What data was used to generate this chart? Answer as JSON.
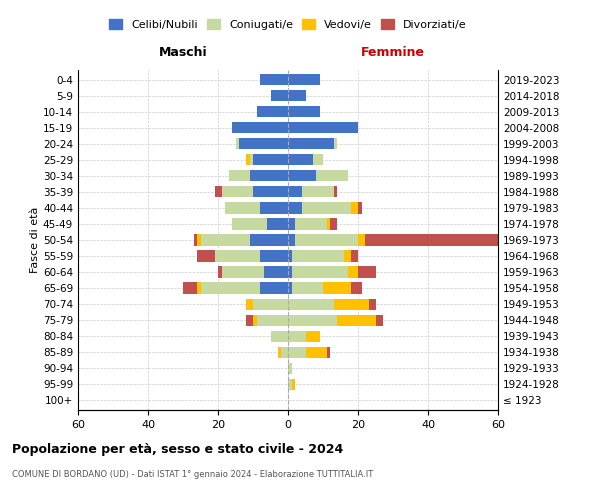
{
  "age_groups": [
    "100+",
    "95-99",
    "90-94",
    "85-89",
    "80-84",
    "75-79",
    "70-74",
    "65-69",
    "60-64",
    "55-59",
    "50-54",
    "45-49",
    "40-44",
    "35-39",
    "30-34",
    "25-29",
    "20-24",
    "15-19",
    "10-14",
    "5-9",
    "0-4"
  ],
  "birth_years": [
    "≤ 1923",
    "1924-1928",
    "1929-1933",
    "1934-1938",
    "1939-1943",
    "1944-1948",
    "1949-1953",
    "1954-1958",
    "1959-1963",
    "1964-1968",
    "1969-1973",
    "1974-1978",
    "1979-1983",
    "1984-1988",
    "1989-1993",
    "1994-1998",
    "1999-2003",
    "2004-2008",
    "2009-2013",
    "2014-2018",
    "2019-2023"
  ],
  "male": {
    "celibi": [
      0,
      0,
      0,
      0,
      0,
      0,
      0,
      8,
      7,
      8,
      11,
      6,
      8,
      10,
      11,
      10,
      14,
      16,
      9,
      5,
      8
    ],
    "coniugati": [
      0,
      0,
      0,
      2,
      5,
      9,
      10,
      17,
      12,
      13,
      14,
      10,
      10,
      9,
      6,
      1,
      1,
      0,
      0,
      0,
      0
    ],
    "vedovi": [
      0,
      0,
      0,
      1,
      0,
      1,
      2,
      1,
      0,
      0,
      1,
      0,
      0,
      0,
      0,
      1,
      0,
      0,
      0,
      0,
      0
    ],
    "divorziati": [
      0,
      0,
      0,
      0,
      0,
      2,
      0,
      4,
      1,
      5,
      1,
      0,
      0,
      2,
      0,
      0,
      0,
      0,
      0,
      0,
      0
    ]
  },
  "female": {
    "nubili": [
      0,
      0,
      0,
      0,
      0,
      0,
      0,
      1,
      1,
      1,
      2,
      2,
      4,
      4,
      8,
      7,
      13,
      20,
      9,
      5,
      9
    ],
    "coniugate": [
      0,
      1,
      1,
      5,
      5,
      14,
      13,
      9,
      16,
      15,
      18,
      9,
      14,
      9,
      9,
      3,
      1,
      0,
      0,
      0,
      0
    ],
    "vedove": [
      0,
      1,
      0,
      6,
      4,
      11,
      10,
      8,
      3,
      2,
      2,
      1,
      2,
      0,
      0,
      0,
      0,
      0,
      0,
      0,
      0
    ],
    "divorziate": [
      0,
      0,
      0,
      1,
      0,
      2,
      2,
      3,
      5,
      2,
      43,
      2,
      1,
      1,
      0,
      0,
      0,
      0,
      0,
      0,
      0
    ]
  },
  "colors": {
    "celibi": "#4472c4",
    "coniugati": "#c5d9a0",
    "vedovi": "#ffc000",
    "divorziati": "#c0504d"
  },
  "xlim": 60,
  "title": "Popolazione per età, sesso e stato civile - 2024",
  "subtitle": "COMUNE DI BORDANO (UD) - Dati ISTAT 1° gennaio 2024 - Elaborazione TUTTITALIA.IT",
  "legend_labels": [
    "Celibi/Nubili",
    "Coniugati/e",
    "Vedovi/e",
    "Divorziati/e"
  ],
  "ylabel_left": "Fasce di età",
  "xlabel_left": "Maschi",
  "xlabel_right": "Femmine"
}
